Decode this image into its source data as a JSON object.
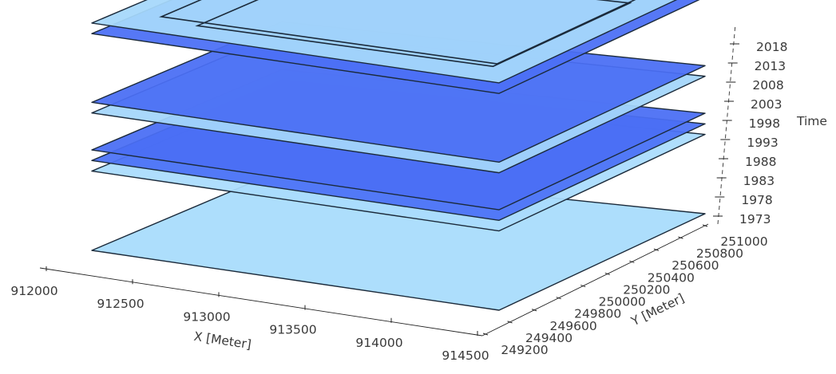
{
  "chart_data": {
    "type": "3d-stacked-planes",
    "x_axis": {
      "title": "X [Meter]",
      "ticks": [
        "912000",
        "912500",
        "913000",
        "913500",
        "914000",
        "914500"
      ]
    },
    "y_axis": {
      "title": "Y [Meter]",
      "ticks": [
        "249200",
        "249400",
        "249600",
        "249800",
        "250000",
        "250200",
        "250400",
        "250600",
        "250800",
        "251000"
      ]
    },
    "z_axis": {
      "title": "Time",
      "ticks": [
        "1973",
        "1978",
        "1983",
        "1988",
        "1993",
        "1998",
        "2003",
        "2008",
        "2013",
        "2018"
      ]
    },
    "planes": [
      {
        "time": 1973,
        "color": "#a8dcfc",
        "edge": "light"
      },
      {
        "time": 1988,
        "color": "#aadcfd",
        "edge": "dark"
      },
      {
        "time": 1990,
        "color": "#4d73f6",
        "edge": "dark"
      },
      {
        "time": 1992,
        "color": "#4a6ff4",
        "edge": "dark"
      },
      {
        "time": 1999,
        "color": "#a4d6fb",
        "edge": "dark"
      },
      {
        "time": 2001,
        "color": "#4a6ff4",
        "edge": "dark"
      },
      {
        "time": 2014,
        "color": "#4b70f5",
        "edge": "dark"
      },
      {
        "time": 2016,
        "color": "#a6d8fb",
        "edge": "dark"
      }
    ],
    "colors": {
      "light_blue": "#a8dcfc",
      "dark_blue": "#4a6ff4"
    }
  }
}
